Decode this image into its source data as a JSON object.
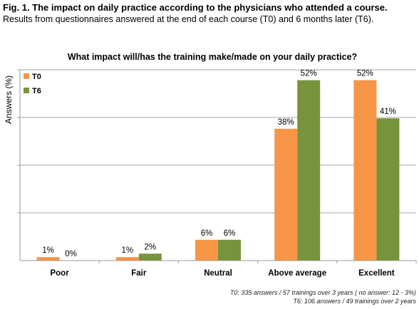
{
  "figure": {
    "title": "Fig. 1. The impact on daily practice according to the physicians who attended a course.",
    "subtitle": "Results from questionnaires answered at the end of each course (T0) and 6 months later (T6).",
    "footnotes": [
      "T0: 335 answers / 57 trainings over 3 years ( no answer: 12 - 3%)",
      "T6: 106 answers / 49 trainings over 2 years"
    ]
  },
  "chart_data": {
    "type": "bar",
    "title": "What impact will/has the training make/made on your daily practice?",
    "xlabel": "",
    "ylabel": "Answers (%)",
    "ylim": [
      0,
      55
    ],
    "grid": true,
    "legend_position": "top-left",
    "categories": [
      "Poor",
      "Fair",
      "Neutral",
      "Above average",
      "Excellent"
    ],
    "series": [
      {
        "name": "T0",
        "color": "#F79646",
        "values": [
          1,
          1,
          6,
          38,
          52
        ],
        "labels": [
          "1%",
          "1%",
          "6%",
          "38%",
          "52%"
        ]
      },
      {
        "name": "T6",
        "color": "#77933C",
        "values": [
          0,
          2,
          6,
          52,
          41
        ],
        "labels": [
          "0%",
          "2%",
          "6%",
          "52%",
          "41%"
        ]
      }
    ]
  }
}
